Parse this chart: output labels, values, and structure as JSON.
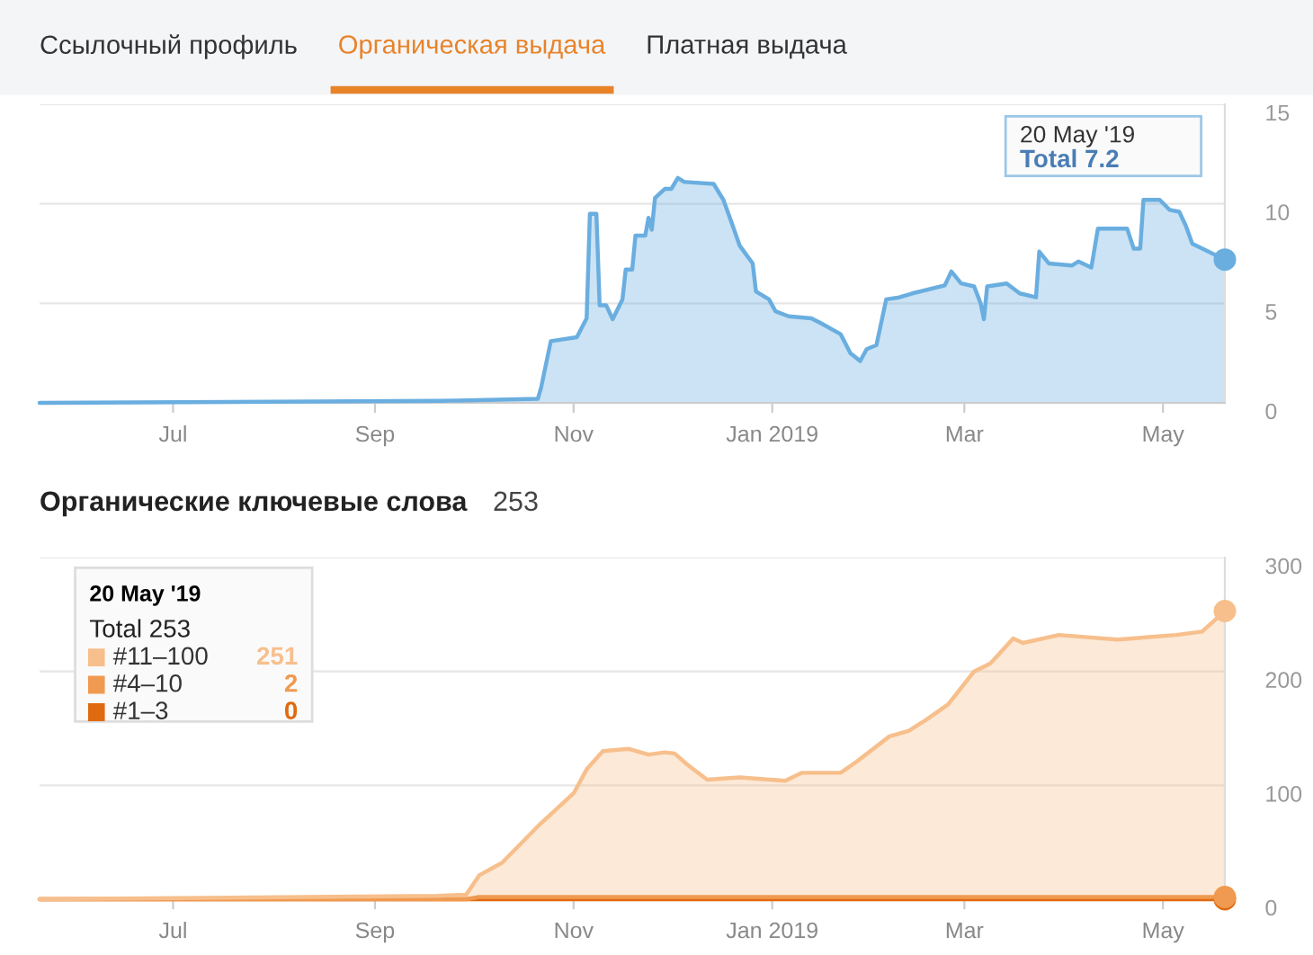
{
  "chart_data": [
    {
      "type": "other",
      "annotations": [
        "Ссылочный профиль",
        "Органическая выдача",
        "Платная выдача"
      ]
    },
    {
      "type": "area",
      "x": [
        "2018-05-21",
        "2018-09-21",
        "2018-10-21",
        "2018-10-22",
        "2018-10-25",
        "2018-11-02",
        "2018-11-05",
        "2018-11-06",
        "2018-11-08",
        "2018-11-09",
        "2018-11-11",
        "2018-11-13",
        "2018-11-16",
        "2018-11-17",
        "2018-11-19",
        "2018-11-20",
        "2018-11-23",
        "2018-11-24",
        "2018-11-25",
        "2018-11-26",
        "2018-11-29",
        "2018-12-01",
        "2018-12-03",
        "2018-12-05",
        "2018-12-14",
        "2018-12-17",
        "2018-12-19",
        "2018-12-22",
        "2018-12-26",
        "2018-12-27",
        "2018-12-31",
        "2019-01-02",
        "2019-01-06",
        "2019-01-13",
        "2019-01-16",
        "2019-01-22",
        "2019-01-25",
        "2019-01-28",
        "2019-01-30",
        "2019-02-02",
        "2019-02-05",
        "2019-02-09",
        "2019-02-13",
        "2019-02-23",
        "2019-02-25",
        "2019-02-28",
        "2019-03-04",
        "2019-03-06",
        "2019-03-07",
        "2019-03-08",
        "2019-03-14",
        "2019-03-18",
        "2019-03-23",
        "2019-03-24",
        "2019-03-27",
        "2019-04-03",
        "2019-04-05",
        "2019-04-09",
        "2019-04-11",
        "2019-04-20",
        "2019-04-22",
        "2019-04-24",
        "2019-04-25",
        "2019-04-30",
        "2019-05-03",
        "2019-05-06",
        "2019-05-08",
        "2019-05-10",
        "2019-05-20"
      ],
      "series": [
        {
          "color": "#6aaee0",
          "values": [
            0,
            0.1,
            0.2,
            0.75,
            3.1,
            3.3,
            4.25,
            9.5,
            9.5,
            4.9,
            4.9,
            4.2,
            5.2,
            6.7,
            6.7,
            8.4,
            8.4,
            9.3,
            8.7,
            10.3,
            10.75,
            10.75,
            11.3,
            11.1,
            11.0,
            10.2,
            9.3,
            7.9,
            7.0,
            5.6,
            5.2,
            4.6,
            4.35,
            4.25,
            4.0,
            3.45,
            2.5,
            2.1,
            2.7,
            2.9,
            5.2,
            5.3,
            5.5,
            5.9,
            6.6,
            6.0,
            5.85,
            5.0,
            4.2,
            5.85,
            6.0,
            5.5,
            5.3,
            7.6,
            7.0,
            6.9,
            7.1,
            6.8,
            8.75,
            8.75,
            7.75,
            7.75,
            10.2,
            10.2,
            9.7,
            9.6,
            8.9,
            8.0,
            7.2
          ]
        }
      ],
      "xlim": [
        "2018-05-21",
        "2019-05-20"
      ],
      "xticks": [
        {
          "value": "2018-07-01",
          "label": "Jul"
        },
        {
          "value": "2018-09-01",
          "label": "Sep"
        },
        {
          "value": "2018-11-01",
          "label": "Nov"
        },
        {
          "value": "2019-01-01",
          "label": "Jan 2019"
        },
        {
          "value": "2019-03-01",
          "label": "Mar"
        },
        {
          "value": "2019-05-01",
          "label": "May"
        }
      ],
      "ylim": [
        0,
        15
      ],
      "yticks": [
        0,
        5,
        10,
        15
      ],
      "grid": "y",
      "annotations": [
        "20 May '19",
        "Total 7.2"
      ]
    },
    {
      "type": "area",
      "stacked": true,
      "title": "Органические ключевые слова",
      "subtitle": "253",
      "x": [
        "2018-05-21",
        "2018-09-20",
        "2018-09-29",
        "2018-10-03",
        "2018-10-10",
        "2018-10-21",
        "2018-11-01",
        "2018-11-05",
        "2018-11-10",
        "2018-11-18",
        "2018-11-24",
        "2018-11-29",
        "2018-12-02",
        "2018-12-06",
        "2018-12-12",
        "2018-12-22",
        "2019-01-05",
        "2019-01-10",
        "2019-01-22",
        "2019-01-27",
        "2019-02-06",
        "2019-02-12",
        "2019-02-17",
        "2019-02-24",
        "2019-03-04",
        "2019-03-09",
        "2019-03-16",
        "2019-03-19",
        "2019-03-30",
        "2019-04-17",
        "2019-05-05",
        "2019-05-13",
        "2019-05-20"
      ],
      "series": [
        {
          "name": "#1–3",
          "type": "line",
          "color": "#e06a10",
          "values": [
            0,
            0,
            0,
            0,
            0,
            0,
            0,
            0,
            0,
            0,
            0,
            0,
            0,
            0,
            0,
            0,
            0,
            0,
            0,
            0,
            0,
            0,
            0,
            0,
            0,
            0,
            0,
            0,
            0,
            0,
            0,
            0,
            0
          ]
        },
        {
          "name": "#4–10",
          "type": "line",
          "color": "#ef9a50",
          "values": [
            0,
            0,
            0,
            2,
            2,
            2,
            2,
            2,
            2,
            2,
            2,
            2,
            2,
            2,
            2,
            2,
            2,
            2,
            2,
            2,
            2,
            2,
            2,
            2,
            2,
            2,
            2,
            2,
            2,
            2,
            2,
            2,
            2
          ]
        },
        {
          "name": "#11–100",
          "type": "area",
          "color": "#f7bf8c",
          "values": [
            0,
            3,
            4,
            19,
            30,
            62,
            91,
            112,
            128,
            130,
            125,
            127,
            126,
            116,
            103,
            105,
            102,
            109,
            109,
            119,
            141,
            146,
            155,
            169,
            198,
            205,
            227,
            223,
            230,
            226,
            230,
            233,
            251
          ]
        }
      ],
      "xlim": [
        "2018-05-21",
        "2019-05-20"
      ],
      "xticks": [
        {
          "value": "2018-07-01",
          "label": "Jul"
        },
        {
          "value": "2018-09-01",
          "label": "Sep"
        },
        {
          "value": "2018-11-01",
          "label": "Nov"
        },
        {
          "value": "2019-01-01",
          "label": "Jan 2019"
        },
        {
          "value": "2019-03-01",
          "label": "Mar"
        },
        {
          "value": "2019-05-01",
          "label": "May"
        }
      ],
      "ylim": [
        0,
        300
      ],
      "yticks": [
        0,
        100,
        200,
        300
      ],
      "grid": "y",
      "legend": "top left",
      "annotations": [
        "20 May '19",
        "Total 253",
        "251",
        "2",
        "0"
      ]
    }
  ]
}
